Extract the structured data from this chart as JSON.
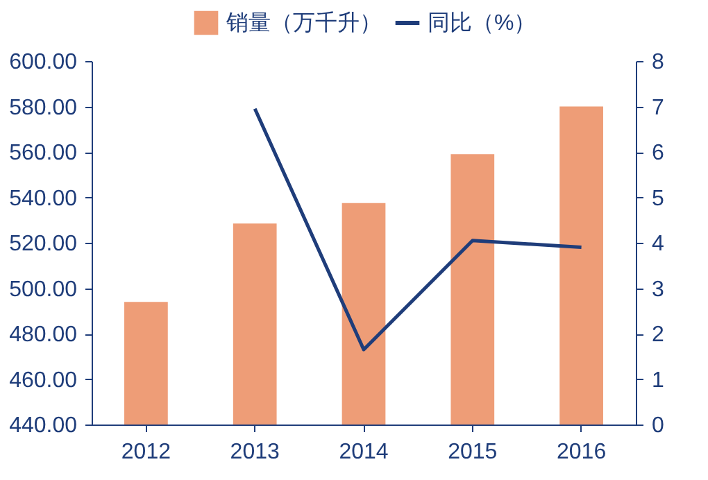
{
  "chart_data": {
    "type": "bar",
    "categories": [
      "2012",
      "2013",
      "2014",
      "2015",
      "2016"
    ],
    "series": [
      {
        "name": "销量（万千升）",
        "color": "#ee9d77",
        "values": [
          494,
          528.5,
          537.5,
          559,
          580
        ]
      },
      {
        "name": "同比（%）",
        "type": "line",
        "axis": "y2",
        "color": "#1f3d7a",
        "values": [
          null,
          6.95,
          1.65,
          4.05,
          3.9
        ]
      }
    ],
    "ylim": [
      440,
      600
    ],
    "yticks": [
      {
        "value": 440,
        "label": "440.00"
      },
      {
        "value": 460,
        "label": "460.00"
      },
      {
        "value": 480,
        "label": "480.00"
      },
      {
        "value": 500,
        "label": "500.00"
      },
      {
        "value": 520,
        "label": "520.00"
      },
      {
        "value": 540,
        "label": "540.00"
      },
      {
        "value": 560,
        "label": "560.00"
      },
      {
        "value": 580,
        "label": "580.00"
      },
      {
        "value": 600,
        "label": "600.00"
      }
    ],
    "y2lim": [
      0,
      8
    ],
    "y2ticks": [
      0,
      1,
      2,
      3,
      4,
      5,
      6,
      7,
      8
    ],
    "legend": "top",
    "grid": false,
    "marker": "none"
  }
}
